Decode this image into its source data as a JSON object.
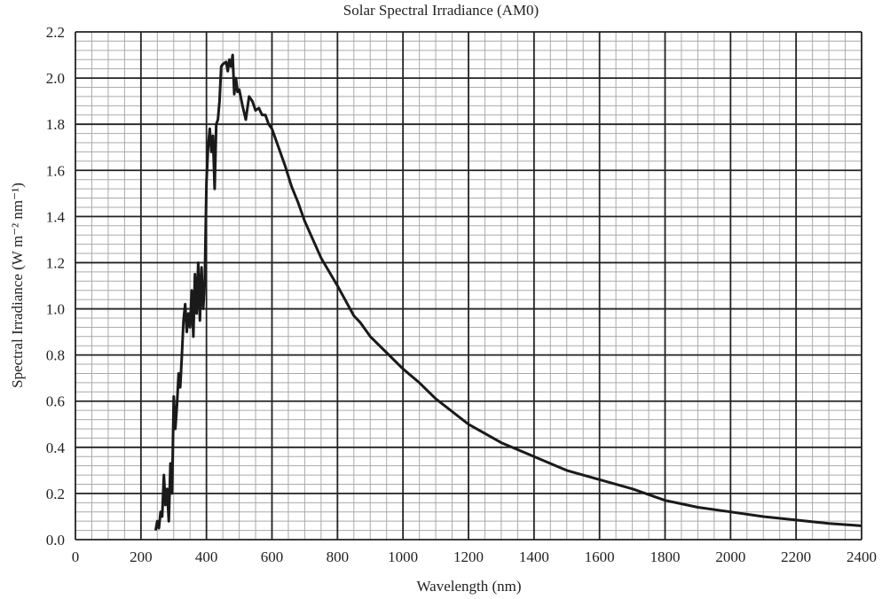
{
  "chart_data": {
    "type": "line",
    "title": "Solar Spectral Irradiance (AM0)",
    "xlabel": "Wavelength (nm)",
    "ylabel": "Spectral Irradiance (W m⁻² nm⁻¹)",
    "xlim": [
      0,
      2400
    ],
    "ylim": [
      0,
      2.2
    ],
    "xticks": [
      0,
      200,
      400,
      600,
      800,
      1000,
      1200,
      1400,
      1600,
      1800,
      2000,
      2200,
      2400
    ],
    "xtick_labels": [
      "0",
      "200",
      "400",
      "600",
      "800",
      "1000",
      "1200",
      "1400",
      "1600",
      "1800",
      "2000",
      "2200",
      "2400"
    ],
    "yticks": [
      0,
      0.2,
      0.4,
      0.6,
      0.8,
      1.0,
      1.2,
      1.4,
      1.6,
      1.8,
      2.0,
      2.2
    ],
    "ytick_labels": [
      "0.0",
      "0.2",
      "0.4",
      "0.6",
      "0.8",
      "1.0",
      "1.2",
      "1.4",
      "1.6",
      "1.8",
      "2.0",
      "2.2"
    ],
    "x_minor_step": 50,
    "y_minor_step": 0.04,
    "grid": true,
    "series": [
      {
        "name": "AM0",
        "color": "#1a1a1a",
        "x": [
          245,
          250,
          255,
          260,
          265,
          270,
          275,
          280,
          285,
          290,
          295,
          300,
          305,
          310,
          315,
          320,
          325,
          330,
          335,
          340,
          345,
          350,
          355,
          360,
          365,
          370,
          375,
          380,
          385,
          390,
          395,
          400,
          405,
          410,
          415,
          420,
          425,
          430,
          435,
          440,
          445,
          450,
          460,
          465,
          470,
          475,
          480,
          485,
          490,
          495,
          500,
          510,
          520,
          530,
          540,
          550,
          560,
          570,
          580,
          590,
          600,
          620,
          640,
          660,
          680,
          700,
          750,
          800,
          850,
          870,
          900,
          950,
          1000,
          1050,
          1100,
          1200,
          1300,
          1400,
          1500,
          1600,
          1700,
          1800,
          1900,
          2000,
          2100,
          2200,
          2300,
          2400
        ],
        "y": [
          0.04,
          0.08,
          0.05,
          0.12,
          0.1,
          0.28,
          0.15,
          0.22,
          0.08,
          0.33,
          0.2,
          0.62,
          0.48,
          0.58,
          0.72,
          0.66,
          0.8,
          0.95,
          1.02,
          0.9,
          0.98,
          0.92,
          1.08,
          0.88,
          1.15,
          0.98,
          1.2,
          0.95,
          1.18,
          1.0,
          1.12,
          1.55,
          1.7,
          1.78,
          1.68,
          1.75,
          1.52,
          1.8,
          1.82,
          1.9,
          2.05,
          2.06,
          2.07,
          2.03,
          2.08,
          2.05,
          2.1,
          1.93,
          2.0,
          1.94,
          1.95,
          1.88,
          1.82,
          1.92,
          1.9,
          1.86,
          1.87,
          1.84,
          1.84,
          1.8,
          1.78,
          1.7,
          1.62,
          1.53,
          1.46,
          1.38,
          1.22,
          1.1,
          0.97,
          0.94,
          0.88,
          0.81,
          0.74,
          0.68,
          0.61,
          0.5,
          0.42,
          0.36,
          0.3,
          0.26,
          0.22,
          0.17,
          0.14,
          0.12,
          0.1,
          0.085,
          0.07,
          0.06
        ]
      }
    ]
  }
}
